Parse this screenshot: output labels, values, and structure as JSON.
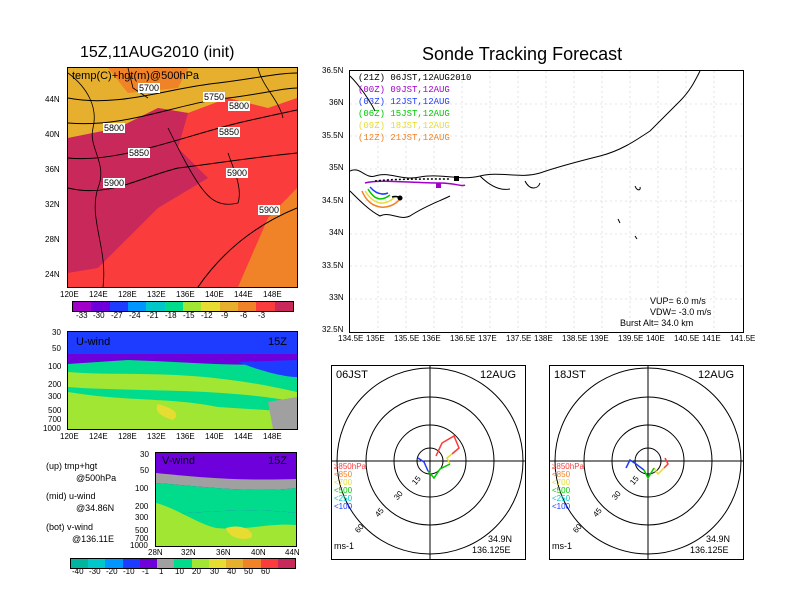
{
  "left_title": "15Z,11AUG2010 (init)",
  "right_title": "Sonde Tracking Forecast",
  "map500": {
    "label": "temp(C)+hgt(m)@500hPa",
    "lat_ticks": [
      "44N",
      "40N",
      "36N",
      "32N",
      "28N",
      "24N"
    ],
    "lon_ticks": [
      "120E",
      "124E",
      "128E",
      "132E",
      "136E",
      "140E",
      "144E",
      "148E"
    ],
    "contour_labels": [
      "5700",
      "5750",
      "5800",
      "5800",
      "5850",
      "5850",
      "5900",
      "5900",
      "5900"
    ],
    "colorbar": [
      "-33",
      "-30",
      "-27",
      "-24",
      "-21",
      "-18",
      "-15",
      "-12",
      "-9",
      "-6",
      "-3"
    ],
    "colorbar_colors": [
      "#a000c8",
      "#6e00dc",
      "#1e3cff",
      "#0096ff",
      "#00c8c8",
      "#00dc8c",
      "#a0e632",
      "#e6dc32",
      "#e6af2d",
      "#f08228",
      "#fa3c3c",
      "#c8285a"
    ]
  },
  "uwind": {
    "label": "U-wind",
    "time": "15Z",
    "y_ticks": [
      "30",
      "50",
      "100",
      "200",
      "300",
      "500",
      "700",
      "1000"
    ],
    "x_ticks": [
      "120E",
      "124E",
      "128E",
      "132E",
      "136E",
      "140E",
      "144E",
      "148E"
    ]
  },
  "vwind": {
    "label": "V-wind",
    "time": "15Z",
    "y_ticks": [
      "30",
      "50",
      "100",
      "200",
      "300",
      "500",
      "700",
      "1000"
    ],
    "x_ticks": [
      "28N",
      "32N",
      "36N",
      "40N",
      "44N"
    ]
  },
  "legend_notes": [
    "(up) tmp+hgt",
    "@500hPa",
    "(mid) u-wind",
    "@34.86N",
    "(bot) v-wind",
    "@136.11E"
  ],
  "wind_colorbar": [
    "-40",
    "-30",
    "-20",
    "-10",
    "-1",
    "1",
    "10",
    "20",
    "30",
    "40",
    "50",
    "60"
  ],
  "wind_colorbar_colors": [
    "#00b4a0",
    "#00c8c8",
    "#0096ff",
    "#1e3cff",
    "#6e00dc",
    "#a0a0a0",
    "#00dc8c",
    "#a0e632",
    "#e6dc32",
    "#e6af2d",
    "#f08228",
    "#fa3c3c",
    "#c8285a"
  ],
  "track": {
    "lat_ticks": [
      "36.5N",
      "36N",
      "35.5N",
      "35N",
      "34.5N",
      "34N",
      "33.5N",
      "33N",
      "32.5N"
    ],
    "lon_ticks": [
      "134.5E",
      "135E",
      "135.5E",
      "136E",
      "136.5E",
      "137E",
      "137.5E",
      "138E",
      "138.5E",
      "139E",
      "139.5E",
      "140E",
      "140.5E",
      "141E",
      "141.5E"
    ],
    "legend": [
      {
        "text": "(21Z)  06JST,12AUG2010",
        "color": "#000000"
      },
      {
        "text": "(00Z)  09JST,12AUG",
        "color": "#a000c8"
      },
      {
        "text": "(03Z)  12JST,12AUG",
        "color": "#1e3cff"
      },
      {
        "text": "(06Z)  15JST,12AUG",
        "color": "#00c800"
      },
      {
        "text": "(09Z)  18JST,12AUG",
        "color": "#e6dc32"
      },
      {
        "text": "(12Z)  21JST,12AUG",
        "color": "#f08228"
      }
    ],
    "vup": "VUP=  6.0  m/s",
    "vdw": "VDW= -3.0  m/s",
    "burst": "Burst Alt= 34.0  km"
  },
  "hodo1": {
    "time": "06JST",
    "date": "12AUG",
    "rings": [
      "15",
      "30",
      "45",
      "60"
    ],
    "units": "ms-1",
    "lat": "34.9N",
    "lon": "136.125E"
  },
  "hodo2": {
    "time": "18JST",
    "date": "12AUG",
    "rings": [
      "15",
      "30",
      "45",
      "60"
    ],
    "units": "ms-1",
    "lat": "34.9N",
    "lon": "136.125E"
  },
  "hodo_levels": [
    {
      "text": "≥850hPa",
      "color": "#fa3c3c"
    },
    {
      "text": "<850",
      "color": "#f08228"
    },
    {
      "text": "<700",
      "color": "#e6dc32"
    },
    {
      "text": "<500",
      "color": "#00c800"
    },
    {
      "text": "<250",
      "color": "#00c8c8"
    },
    {
      "text": "<100",
      "color": "#1e3cff"
    }
  ]
}
